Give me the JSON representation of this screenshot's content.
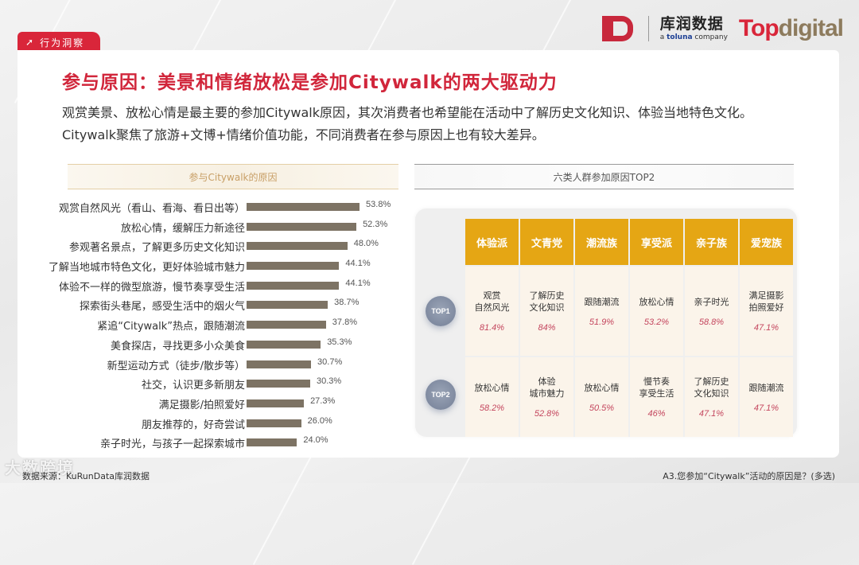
{
  "section_tag": {
    "icon": "arrow-up-right-icon",
    "label": "行为洞察"
  },
  "logos": {
    "kurun_cn": "库润数据",
    "kurun_en_prefix": "a ",
    "kurun_en_brand": "toluna",
    "kurun_en_suffix": " company",
    "topdigital_top": "Top",
    "topdigital_digital": "digital"
  },
  "title": "参与原因：美景和情绪放松是参加Citywalk的两大驱动力",
  "description": "观赏美景、放松心情是最主要的参加Citywalk原因，其次消费者也希望能在活动中了解历史文化知识、体验当地特色文化。Citywalk聚焦了旅游+文博+情绪价值功能，不同消费者在参与原因上也有较大差异。",
  "left_panel": {
    "header": "参与Citywalk的原因"
  },
  "right_panel": {
    "header": "六类人群参加原因TOP2"
  },
  "chart_data": [
    {
      "type": "bar",
      "orientation": "horizontal",
      "title": "参与Citywalk的原因",
      "categories": [
        "观赏自然风光（看山、看海、看日出等）",
        "放松心情，缓解压力新途径",
        "参观著名景点，了解更多历史文化知识",
        "了解当地城市特色文化，更好体验城市魅力",
        "体验不一样的微型旅游，慢节奏享受生活",
        "探索街头巷尾，感受生活中的烟火气",
        "紧追“Citywalk”热点，跟随潮流",
        "美食探店，寻找更多小众美食",
        "新型运动方式（徒步/散步等）",
        "社交，认识更多新朋友",
        "满足摄影/拍照爱好",
        "朋友推荐的，好奇尝试",
        "亲子时光，与孩子一起探索城市"
      ],
      "values": [
        53.8,
        52.3,
        48.0,
        44.1,
        44.1,
        38.7,
        37.8,
        35.3,
        30.7,
        30.3,
        27.3,
        26.0,
        24.0
      ],
      "value_labels": [
        "53.8%",
        "52.3%",
        "48.0%",
        "44.1%",
        "44.1%",
        "38.7%",
        "37.8%",
        "35.3%",
        "30.7%",
        "30.3%",
        "27.3%",
        "26.0%",
        "24.0%"
      ],
      "unit": "%",
      "bar_color": "#7d7364",
      "grid": false,
      "legend": "none"
    },
    {
      "type": "table",
      "title": "六类人群参加原因TOP2",
      "columns": [
        "体验派",
        "文青党",
        "潮流族",
        "享受派",
        "亲子族",
        "爱宠族"
      ],
      "rows": [
        {
          "rank": "TOP1",
          "cells": [
            {
              "reason": "观赏\n自然风光",
              "pct": "81.4%"
            },
            {
              "reason": "了解历史\n文化知识",
              "pct": "84%"
            },
            {
              "reason": "跟随潮流",
              "pct": "51.9%"
            },
            {
              "reason": "放松心情",
              "pct": "53.2%"
            },
            {
              "reason": "亲子时光",
              "pct": "58.8%"
            },
            {
              "reason": "满足摄影\n拍照爱好",
              "pct": "47.1%"
            }
          ]
        },
        {
          "rank": "TOP2",
          "cells": [
            {
              "reason": "放松心情",
              "pct": "58.2%"
            },
            {
              "reason": "体验\n城市魅力",
              "pct": "52.8%"
            },
            {
              "reason": "放松心情",
              "pct": "50.5%"
            },
            {
              "reason": "慢节奏\n享受生活",
              "pct": "46%"
            },
            {
              "reason": "了解历史\n文化知识",
              "pct": "47.1%"
            },
            {
              "reason": "跟随潮流",
              "pct": "47.1%"
            }
          ]
        }
      ],
      "header_color": "#e5a614",
      "cell_color": "#fbf4ea",
      "pct_color": "#c4465e"
    }
  ],
  "footer": {
    "source": "数据来源：KuRunData库润数据",
    "question": "A3.您参加“Citywalk”活动的原因是？(多选)"
  },
  "watermark": "大数跨境",
  "colors": {
    "accent_red": "#d1263b",
    "gold": "#e5a614",
    "bar": "#7d7364"
  }
}
